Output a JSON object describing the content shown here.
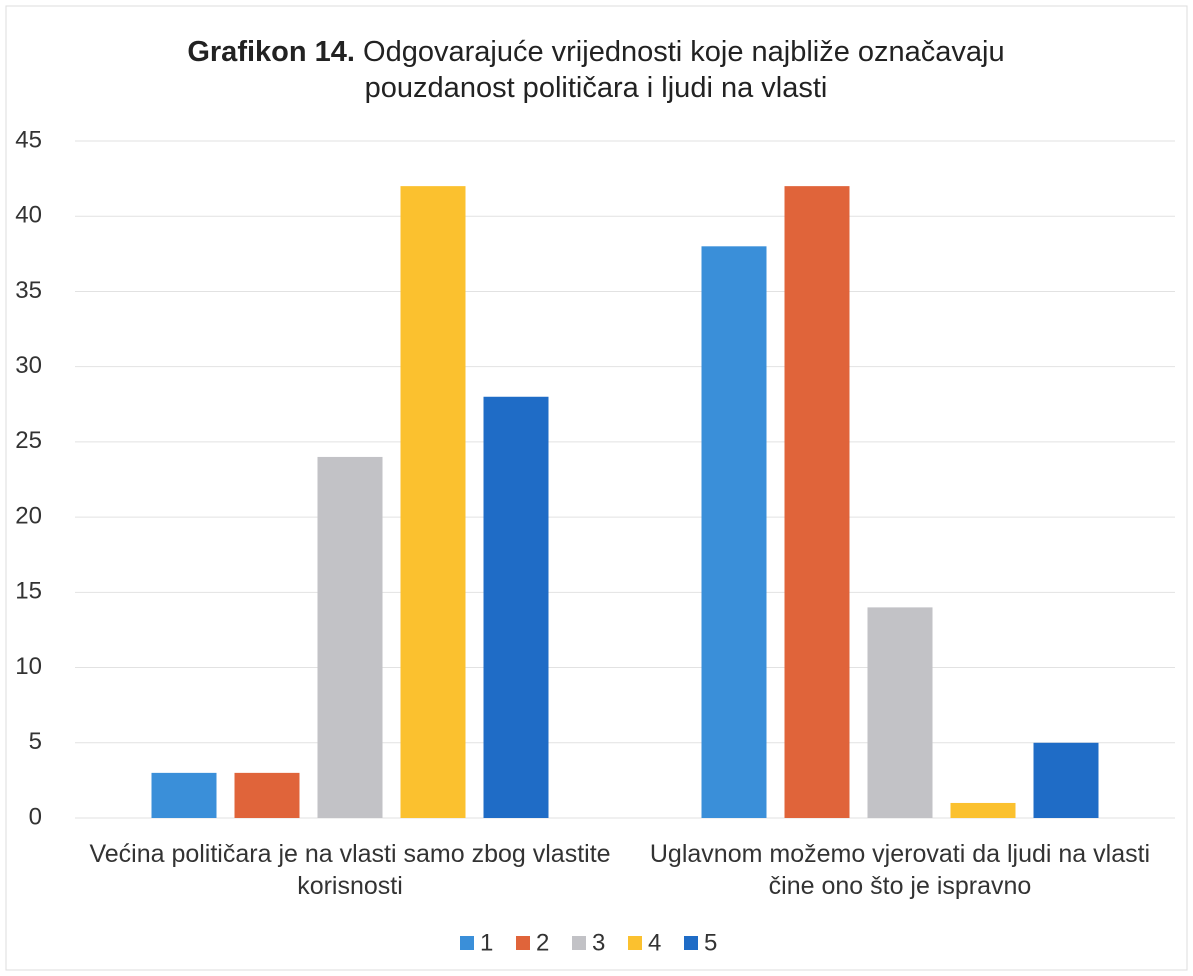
{
  "chart_data": {
    "type": "bar",
    "title_label": "Grafikon 14.",
    "title": "Odgovarajuće vrijednosti koje najbliže označavaju pouzdanost političara i ljudi na vlasti",
    "categories": [
      "Većina političara je na vlasti samo zbog vlastite korisnosti",
      "Uglavnom možemo vjerovati da ljudi na vlasti čine ono što je ispravno"
    ],
    "series": [
      {
        "name": "1",
        "color": "#3a8fd9",
        "values": [
          3,
          38
        ]
      },
      {
        "name": "2",
        "color": "#e0643a",
        "values": [
          3,
          42
        ]
      },
      {
        "name": "3",
        "color": "#c2c2c6",
        "values": [
          24,
          14
        ]
      },
      {
        "name": "4",
        "color": "#fbc12f",
        "values": [
          42,
          1
        ]
      },
      {
        "name": "5",
        "color": "#1f6cc6",
        "values": [
          28,
          5
        ]
      }
    ],
    "ylim": [
      0,
      45
    ],
    "yticks": [
      0,
      5,
      10,
      15,
      20,
      25,
      30,
      35,
      40,
      45
    ],
    "grid": true,
    "legend": "bottom"
  }
}
